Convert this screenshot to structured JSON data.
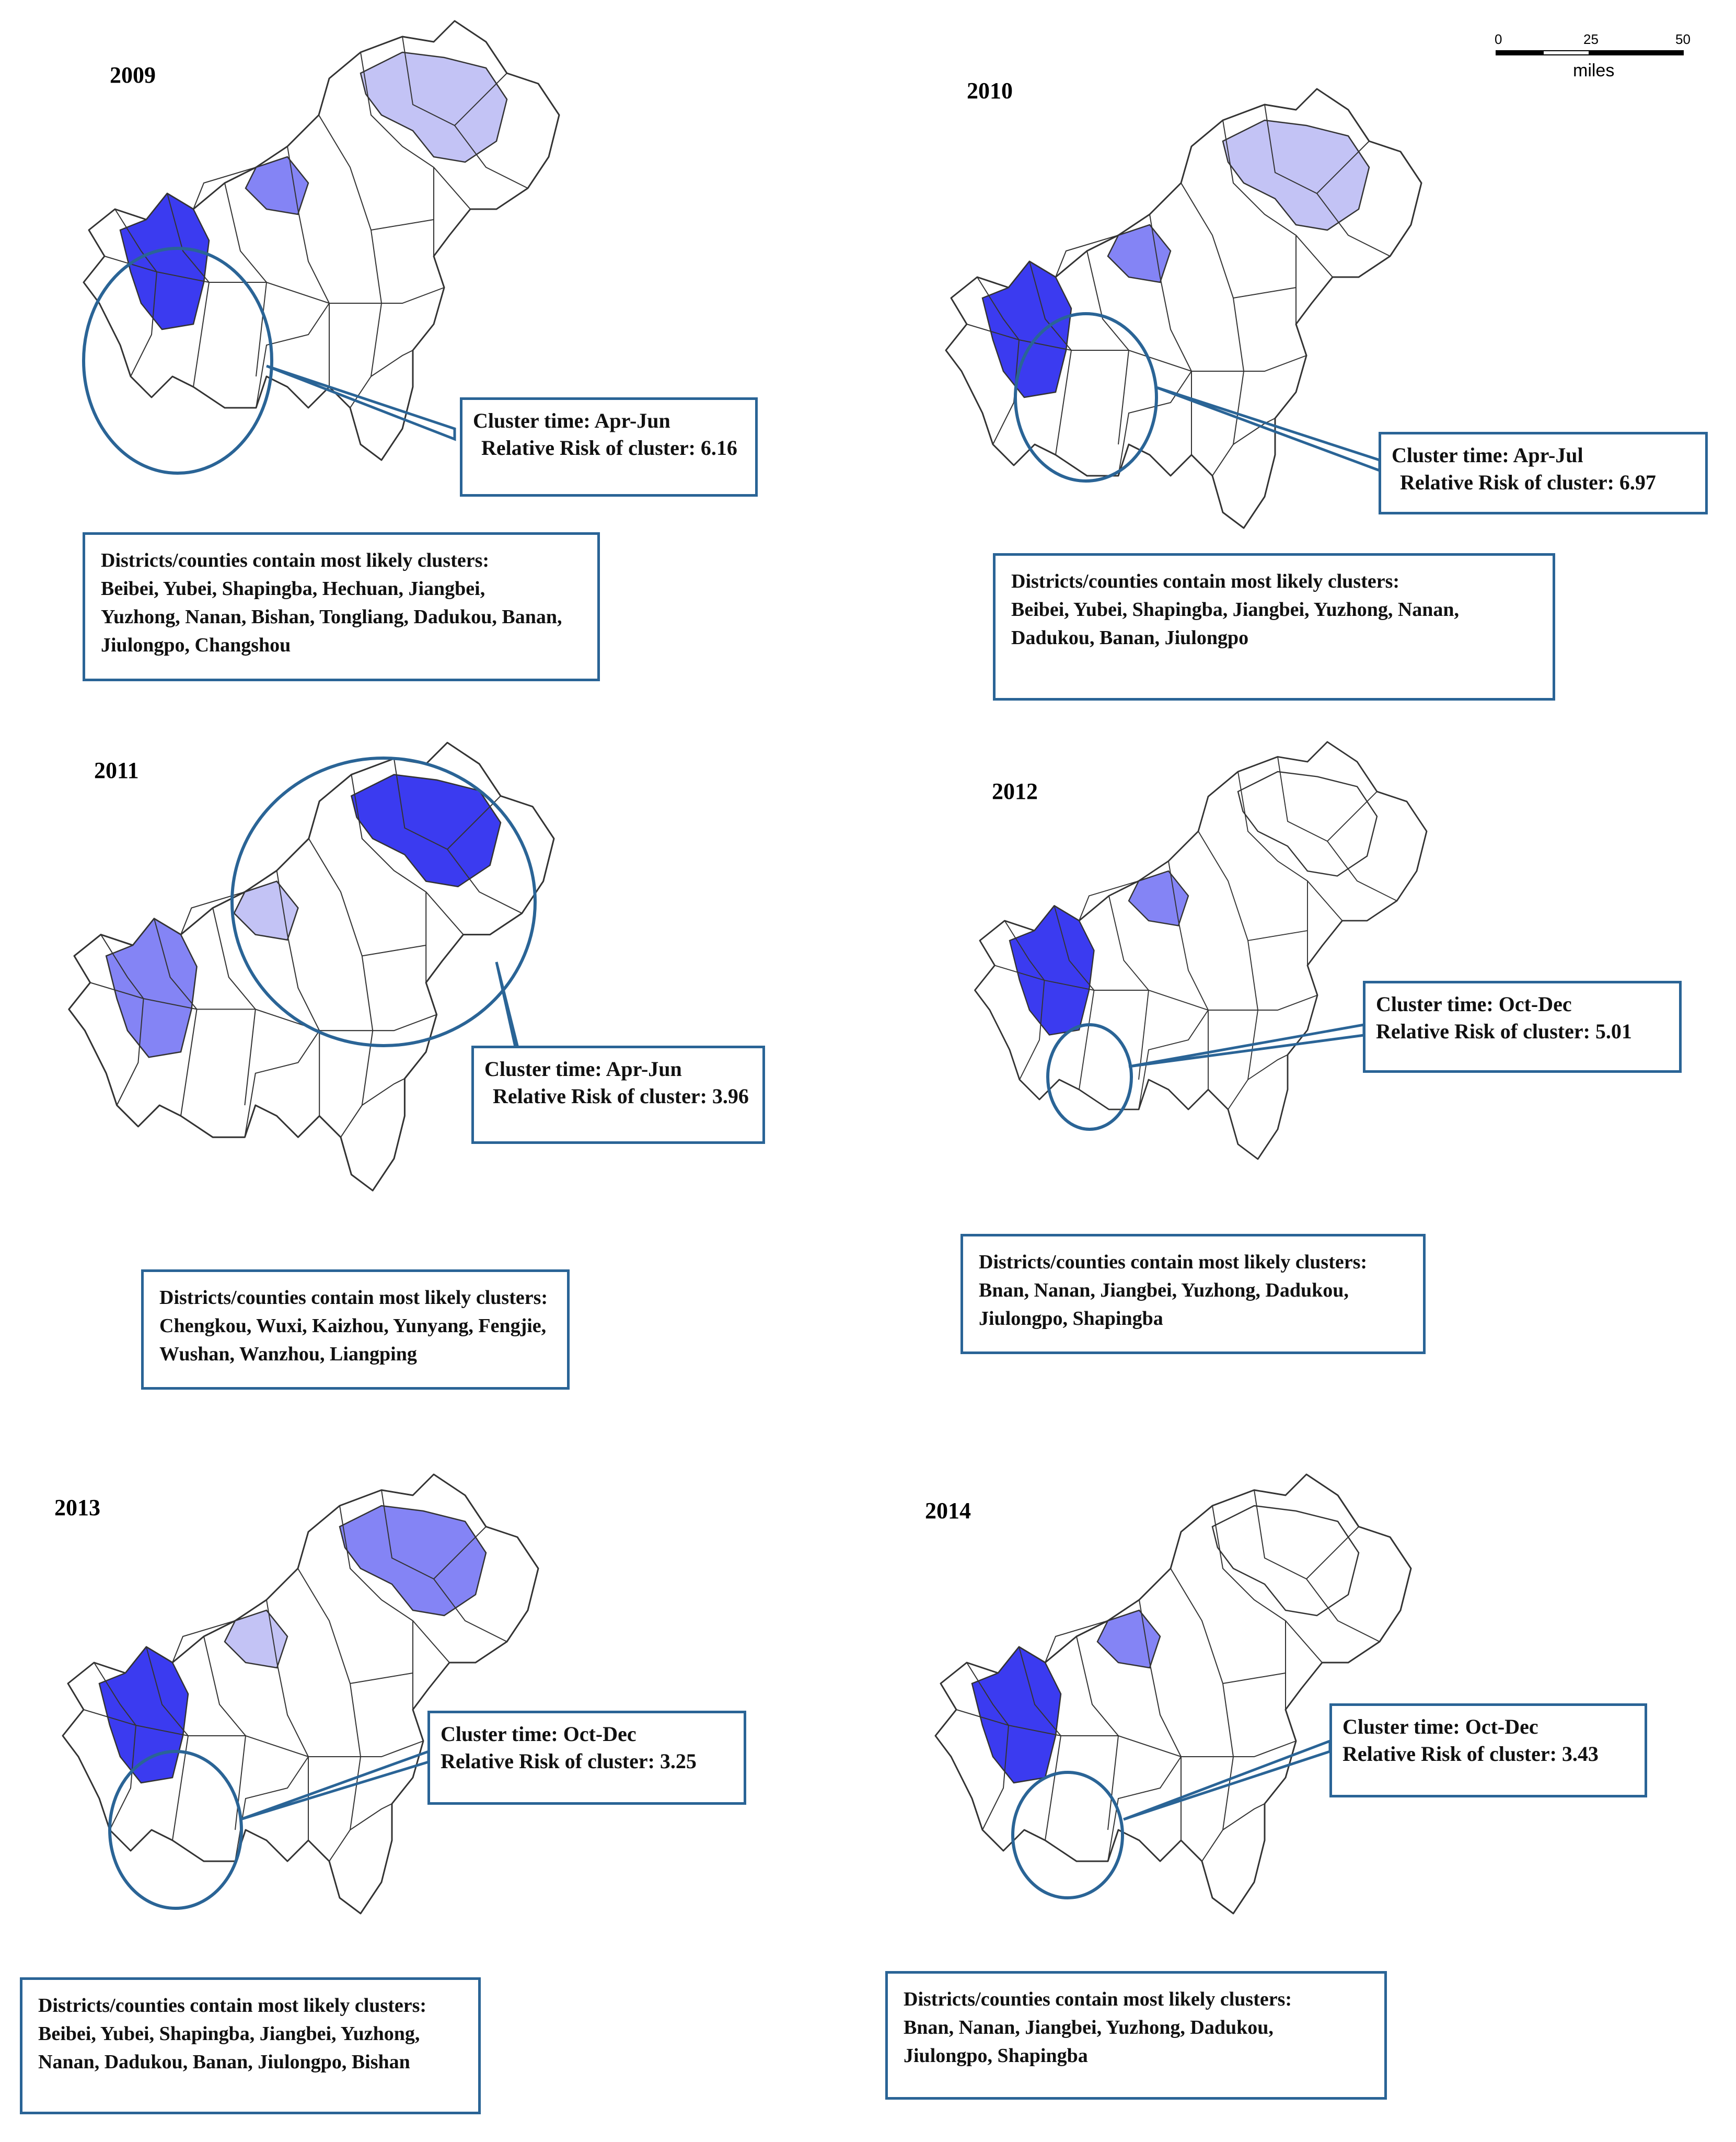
{
  "colors": {
    "level_high": "#3b3bf0",
    "level_mid": "#8484f5",
    "level_low": "#c3c3f5",
    "level_none": "#ffffff",
    "border": "#333333",
    "callout_border": "#2a6496"
  },
  "scale_bar": {
    "ticks": [
      "0",
      "25",
      "50"
    ],
    "unit": "miles"
  },
  "panels": [
    {
      "year": "2009",
      "cluster_time": "Cluster time: Apr-Jun",
      "relative_risk": "Relative Risk of cluster: 6.16",
      "districts_heading": "Districts/counties contain most likely clusters:",
      "districts_lines": [
        "Beibei, Yubei, Shapingba, Hechuan, Jiangbei,",
        "Yuzhong, Nanan, Bishan, Tongliang, Dadukou, Banan,",
        "Jiulongpo, Changshou"
      ],
      "fills": {
        "sw": "high",
        "center": "mid",
        "ne": "low"
      }
    },
    {
      "year": "2010",
      "cluster_time": "Cluster time: Apr-Jul",
      "relative_risk": "Relative Risk of cluster: 6.97",
      "districts_heading": "Districts/counties contain most likely clusters:",
      "districts_lines": [
        "Beibei, Yubei, Shapingba, Jiangbei, Yuzhong, Nanan,",
        "Dadukou, Banan, Jiulongpo"
      ],
      "fills": {
        "sw": "high",
        "center": "mid",
        "ne": "low"
      }
    },
    {
      "year": "2011",
      "cluster_time": "Cluster time: Apr-Jun",
      "relative_risk": "Relative Risk of cluster: 3.96",
      "districts_heading": "Districts/counties contain most likely clusters:",
      "districts_lines": [
        "Chengkou, Wuxi, Kaizhou, Yunyang, Fengjie,",
        "Wushan, Wanzhou,  Liangping"
      ],
      "fills": {
        "sw": "mid",
        "center": "low",
        "ne": "high"
      }
    },
    {
      "year": "2012",
      "cluster_time": "Cluster time: Oct-Dec",
      "relative_risk": "Relative Risk of cluster: 5.01",
      "districts_heading": "Districts/counties contain most likely clusters:",
      "districts_lines": [
        "Bnan, Nanan, Jiangbei, Yuzhong, Dadukou,",
        "Jiulongpo, Shapingba"
      ],
      "fills": {
        "sw": "high",
        "center": "mid",
        "ne": "none"
      }
    },
    {
      "year": "2013",
      "cluster_time": "Cluster time: Oct-Dec",
      "relative_risk": "Relative Risk of cluster: 3.25",
      "districts_heading": "Districts/counties contain most likely clusters:",
      "districts_lines": [
        "Beibei, Yubei, Shapingba, Jiangbei, Yuzhong,",
        "Nanan, Dadukou, Banan, Jiulongpo, Bishan"
      ],
      "fills": {
        "sw": "high",
        "center": "low",
        "ne": "mid"
      }
    },
    {
      "year": "2014",
      "cluster_time": "Cluster time: Oct-Dec",
      "relative_risk": "Relative Risk of cluster: 3.43",
      "districts_heading": "Districts/counties contain most likely clusters:",
      "districts_lines": [
        "Bnan, Nanan, Jiangbei, Yuzhong, Dadukou,",
        "Jiulongpo, Shapingba"
      ],
      "fills": {
        "sw": "high",
        "center": "mid",
        "ne": "none"
      }
    }
  ]
}
